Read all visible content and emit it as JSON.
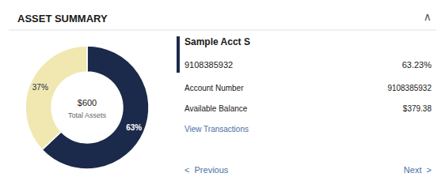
{
  "chart_data": {
    "type": "pie",
    "title": "ASSET SUMMARY",
    "values": [
      63,
      37
    ],
    "value_labels": [
      "63%",
      "37%"
    ],
    "colors": [
      "#1b2a4a",
      "#f0e8b0"
    ],
    "data_labels": true,
    "annotations": [
      "∧",
      "$600",
      "Total Assets",
      "Sample Acct S",
      "9108385932",
      "63.23%",
      "Account Number",
      "9108385932",
      "Available Balance",
      "$379.38",
      "View Transactions",
      "<  Previous",
      "Next  >"
    ]
  }
}
